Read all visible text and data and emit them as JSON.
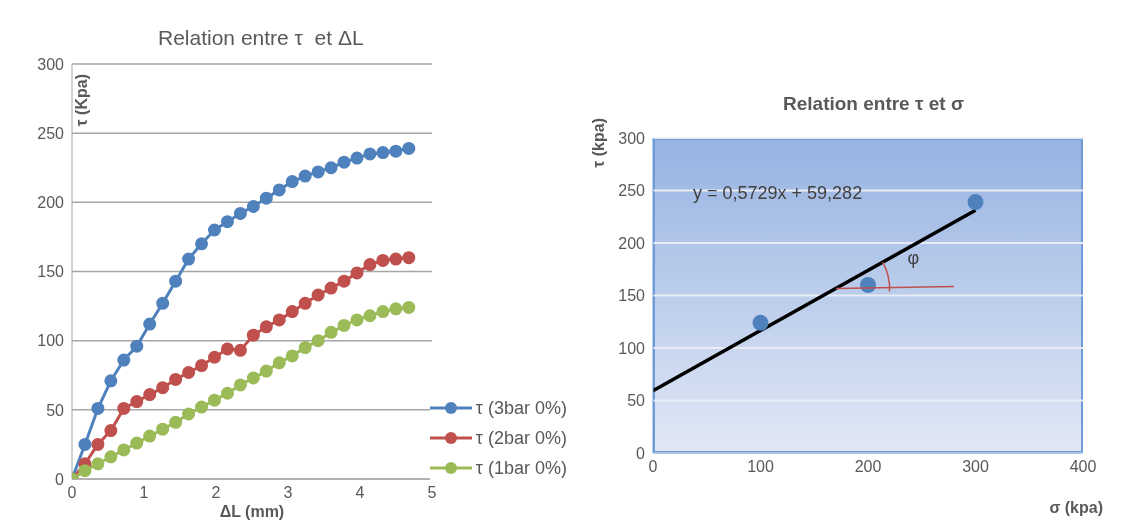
{
  "chart_data": [
    {
      "type": "line",
      "title": "Relation entre τ  et ΔL",
      "xlabel": "ΔL (mm)",
      "ylabel": "τ (Kpa)",
      "x": [
        0,
        0.18,
        0.36,
        0.54,
        0.72,
        0.9,
        1.08,
        1.26,
        1.44,
        1.62,
        1.8,
        1.98,
        2.16,
        2.34,
        2.52,
        2.7,
        2.88,
        3.06,
        3.24,
        3.42,
        3.6,
        3.78,
        3.96,
        4.14,
        4.32,
        4.5,
        4.68
      ],
      "series": [
        {
          "name": "τ (3bar 0%)",
          "color": "#4f81bd",
          "values": [
            0,
            25,
            51,
            71,
            86,
            96,
            112,
            127,
            143,
            159,
            170,
            180,
            186,
            192,
            197,
            203,
            209,
            215,
            219,
            222,
            225,
            229,
            232,
            235,
            236,
            237,
            239
          ]
        },
        {
          "name": "τ (2bar 0%)",
          "color": "#c0504d",
          "values": [
            0,
            11,
            25,
            35,
            51,
            56,
            61,
            66,
            72,
            77,
            82,
            88,
            94,
            93,
            104,
            110,
            115,
            121,
            127,
            133,
            138,
            143,
            149,
            155,
            158,
            159,
            160
          ]
        },
        {
          "name": "τ (1bar 0%)",
          "color": "#9bbb59",
          "values": [
            0,
            6,
            11,
            16,
            21,
            26,
            31,
            36,
            41,
            47,
            52,
            57,
            62,
            68,
            73,
            78,
            84,
            89,
            95,
            100,
            106,
            111,
            115,
            118,
            121,
            123,
            124
          ]
        }
      ],
      "xlim": [
        0,
        5
      ],
      "xticks": [
        0,
        1,
        2,
        3,
        4,
        5
      ],
      "ylim": [
        0,
        300
      ],
      "yticks": [
        0,
        50,
        100,
        150,
        200,
        250,
        300
      ],
      "grid": "y",
      "legend": "bottom right",
      "marker": "circle"
    },
    {
      "type": "scatter",
      "title": "Relation entre τ et σ",
      "xlabel": "σ (kpa)",
      "ylabel": "τ (kpa)",
      "series": [
        {
          "type": "scatter",
          "color": "#4f81bd",
          "marker": "circle",
          "x": [
            100,
            200,
            300
          ],
          "values": [
            124,
            160,
            239
          ]
        },
        {
          "type": "line",
          "color": "#000000",
          "x": [
            0,
            300
          ],
          "values": [
            59.3,
            231.2
          ]
        }
      ],
      "xlim": [
        0,
        400
      ],
      "xticks": [
        0,
        100,
        200,
        300,
        400
      ],
      "ylim": [
        0,
        300
      ],
      "yticks": [
        0,
        50,
        100,
        150,
        200,
        250,
        300
      ],
      "grid": "y",
      "annotations": [
        "y = 0,5729x + 59,282",
        "φ"
      ]
    }
  ]
}
